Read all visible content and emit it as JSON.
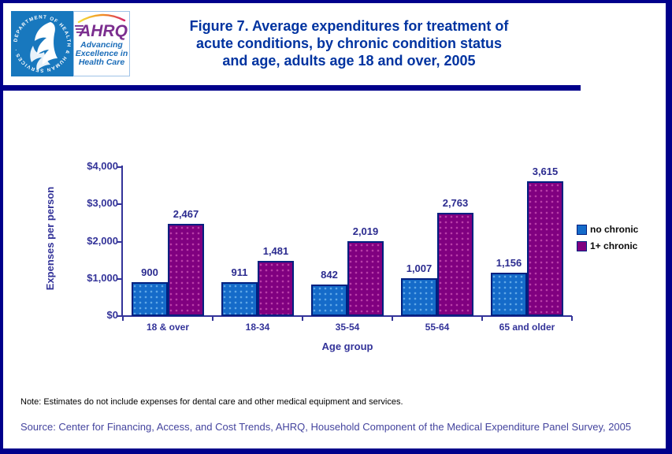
{
  "header": {
    "logo": {
      "hhs_seal_text": "DEPARTMENT OF HEALTH & HUMAN SERVICES · USA",
      "ahrq_wordmark": "AHRQ",
      "tagline_lines": [
        "Advancing",
        "Excellence in",
        "Health Care"
      ]
    },
    "title_lines": [
      "Figure 7. Average expenditures for treatment of",
      "acute conditions, by chronic condition status",
      "and age, adults age 18 and over, 2005"
    ]
  },
  "chart_data": {
    "type": "bar",
    "title": "",
    "categories": [
      "18 & over",
      "18-34",
      "35-54",
      "55-64",
      "65 and older"
    ],
    "series": [
      {
        "name": "no chronic",
        "color": "#156BC9",
        "values": [
          900,
          911,
          842,
          1007,
          1156
        ]
      },
      {
        "name": "1+ chronic",
        "color": "#800080",
        "values": [
          2467,
          1481,
          2019,
          2763,
          3615
        ]
      }
    ],
    "value_labels": {
      "no chronic": [
        "900",
        "911",
        "842",
        "1,007",
        "1,156"
      ],
      "1+ chronic": [
        "2,467",
        "1,481",
        "2,019",
        "2,763",
        "3,615"
      ]
    },
    "xlabel": "Age group",
    "ylabel": "Expenses per person",
    "ylim": [
      0,
      4000
    ],
    "ytick_labels": [
      "$0",
      "$1,000",
      "$2,000",
      "$3,000",
      "$4,000"
    ],
    "grid": false,
    "legend_position": "right"
  },
  "footer": {
    "note": "Note:  Estimates do not include expenses for dental care and other medical equipment and services.",
    "source": "Source: Center for Financing, Access, and Cost Trends, AHRQ, Household Component of the Medical Expenditure Panel Survey, 2005"
  },
  "colors": {
    "frame_navy": "#00008B",
    "title_blue": "#0033A0",
    "axis_text": "#333399",
    "bar_blue": "#156BC9",
    "bar_purple": "#800080",
    "bar_border": "#002080",
    "source_text": "#44449E",
    "hhs_blue": "#1878BE",
    "ahrq_purple": "#7B2E8F",
    "tagline_blue": "#1A6CB8"
  }
}
